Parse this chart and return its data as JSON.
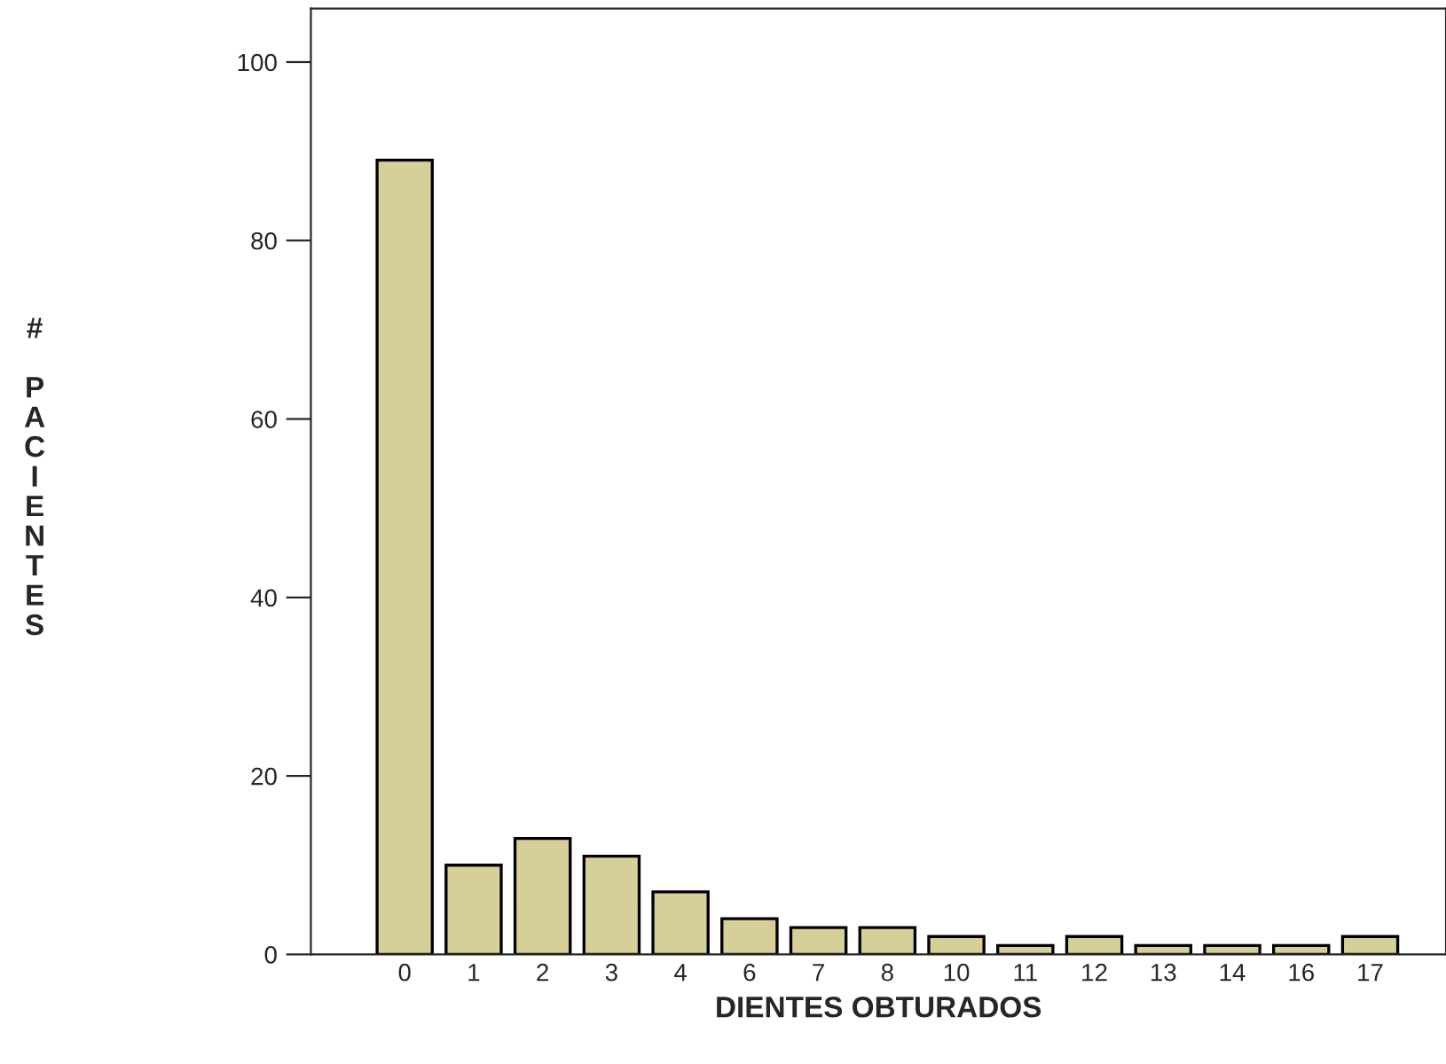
{
  "chart_data": {
    "type": "bar",
    "xlabel": "DIENTES OBTURADOS",
    "ylabel": "# PACIENTES",
    "categories": [
      "0",
      "1",
      "2",
      "3",
      "4",
      "6",
      "7",
      "8",
      "10",
      "11",
      "12",
      "13",
      "14",
      "16",
      "17"
    ],
    "values": [
      89,
      10,
      13,
      11,
      7,
      4,
      3,
      3,
      2,
      1,
      2,
      1,
      1,
      1,
      2
    ],
    "color": "#d6cf9a",
    "ylim": [
      0,
      106
    ],
    "yticks": [
      0,
      20,
      40,
      60,
      80,
      100
    ],
    "grid": false,
    "legend": false
  }
}
